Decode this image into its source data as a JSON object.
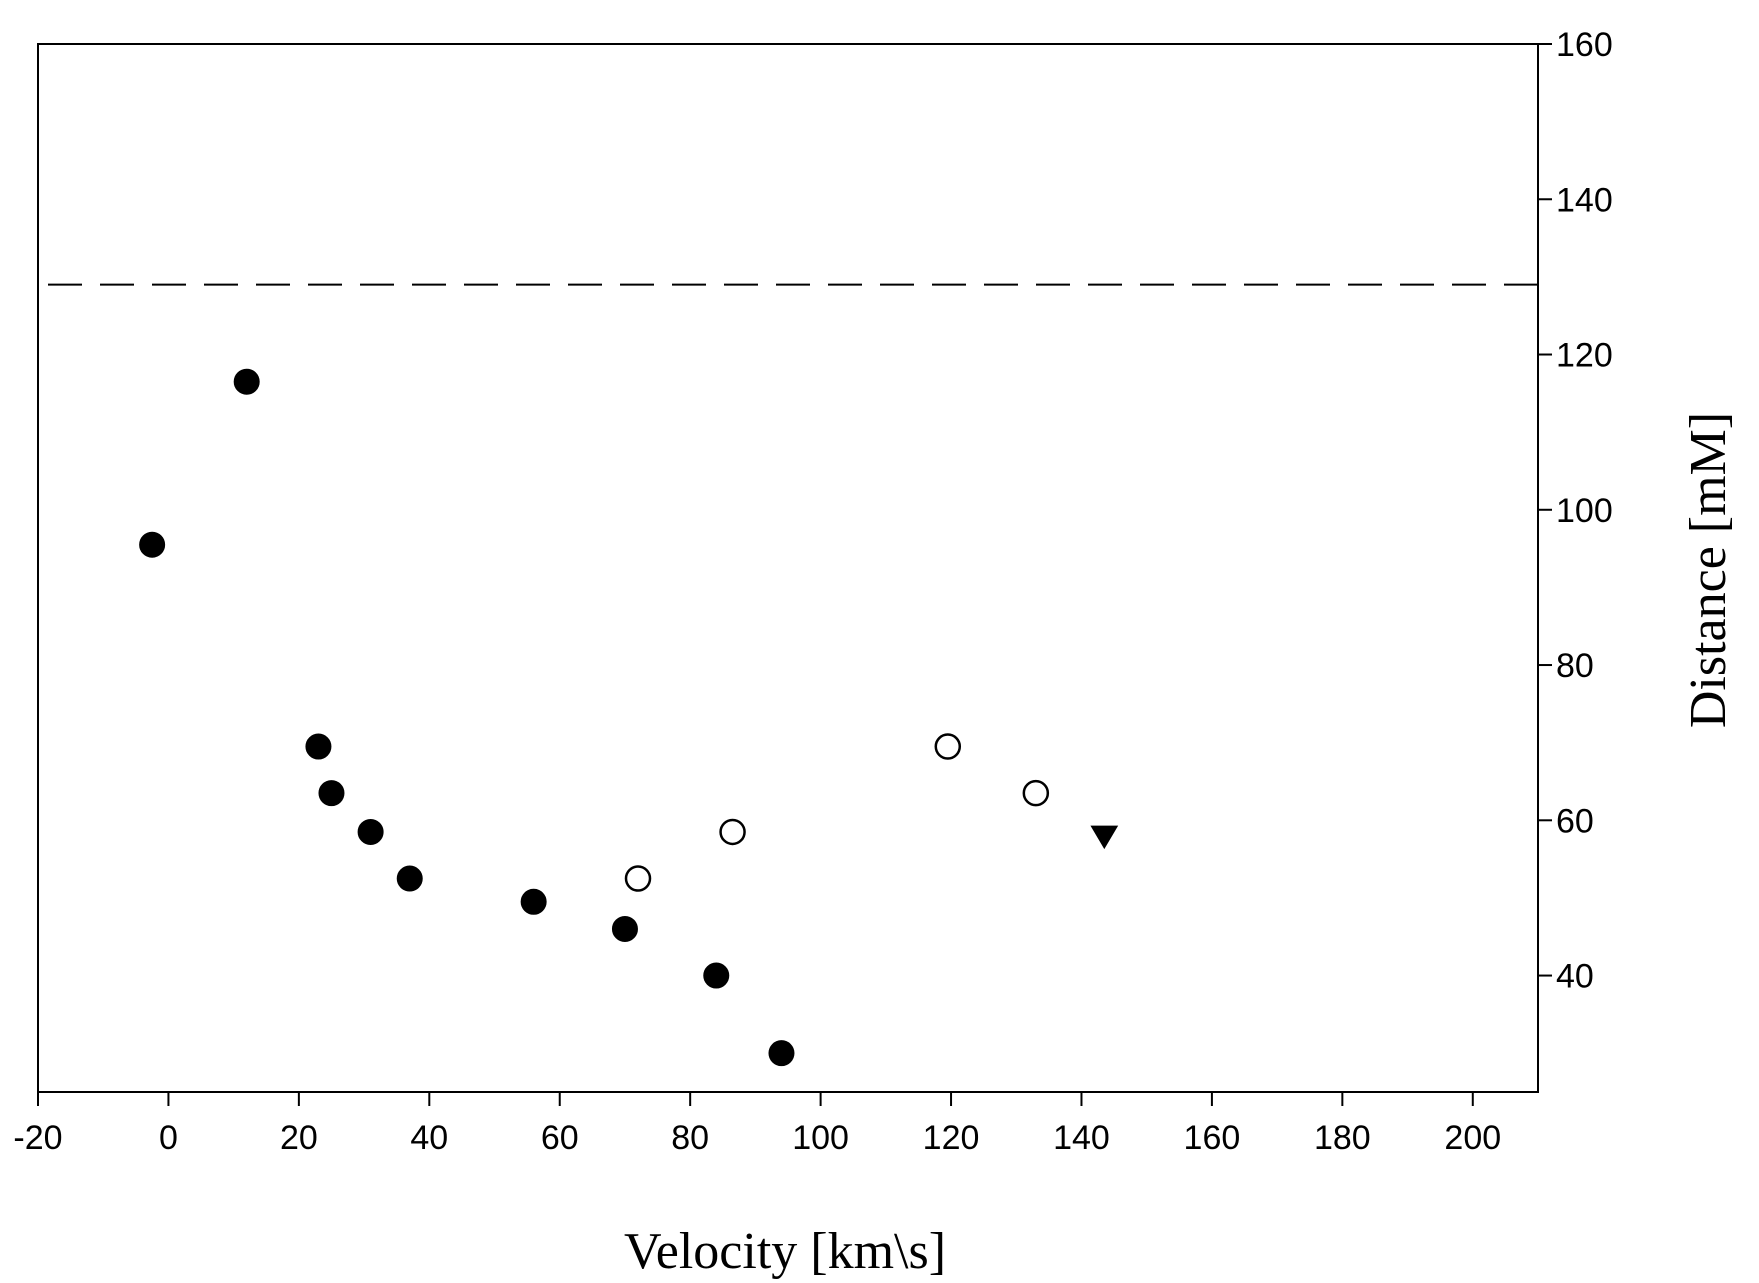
{
  "chart_data": {
    "type": "scatter",
    "title": "",
    "xlabel": "Velocity [km\\s]",
    "ylabel": "Distance [mM]",
    "xlim": [
      -20,
      210
    ],
    "ylim": [
      25,
      160
    ],
    "x_ticks": [
      -20,
      0,
      20,
      40,
      60,
      80,
      100,
      120,
      140,
      160,
      180,
      200
    ],
    "y_ticks": [
      40,
      60,
      80,
      100,
      120,
      140,
      160
    ],
    "y_axis_side": "right",
    "grid": false,
    "legend": "none",
    "reference_lines": [
      {
        "orientation": "horizontal",
        "y": 129,
        "style": "dashed"
      }
    ],
    "series": [
      {
        "marker": "filled-circle",
        "color": "#000000",
        "points": [
          [
            -2.5,
            95.5
          ],
          [
            12,
            116.5
          ],
          [
            23,
            69.5
          ],
          [
            25,
            63.5
          ],
          [
            31,
            58.5
          ],
          [
            37,
            52.5
          ],
          [
            56,
            49.5
          ],
          [
            70,
            46
          ],
          [
            84,
            40
          ],
          [
            94,
            30
          ]
        ]
      },
      {
        "marker": "open-circle",
        "color": "#000000",
        "points": [
          [
            72,
            52.5
          ],
          [
            86.5,
            58.5
          ],
          [
            119.5,
            69.5
          ],
          [
            133,
            63.5
          ]
        ]
      },
      {
        "marker": "filled-triangle-down",
        "color": "#000000",
        "points": [
          [
            143.5,
            58
          ]
        ]
      }
    ]
  }
}
